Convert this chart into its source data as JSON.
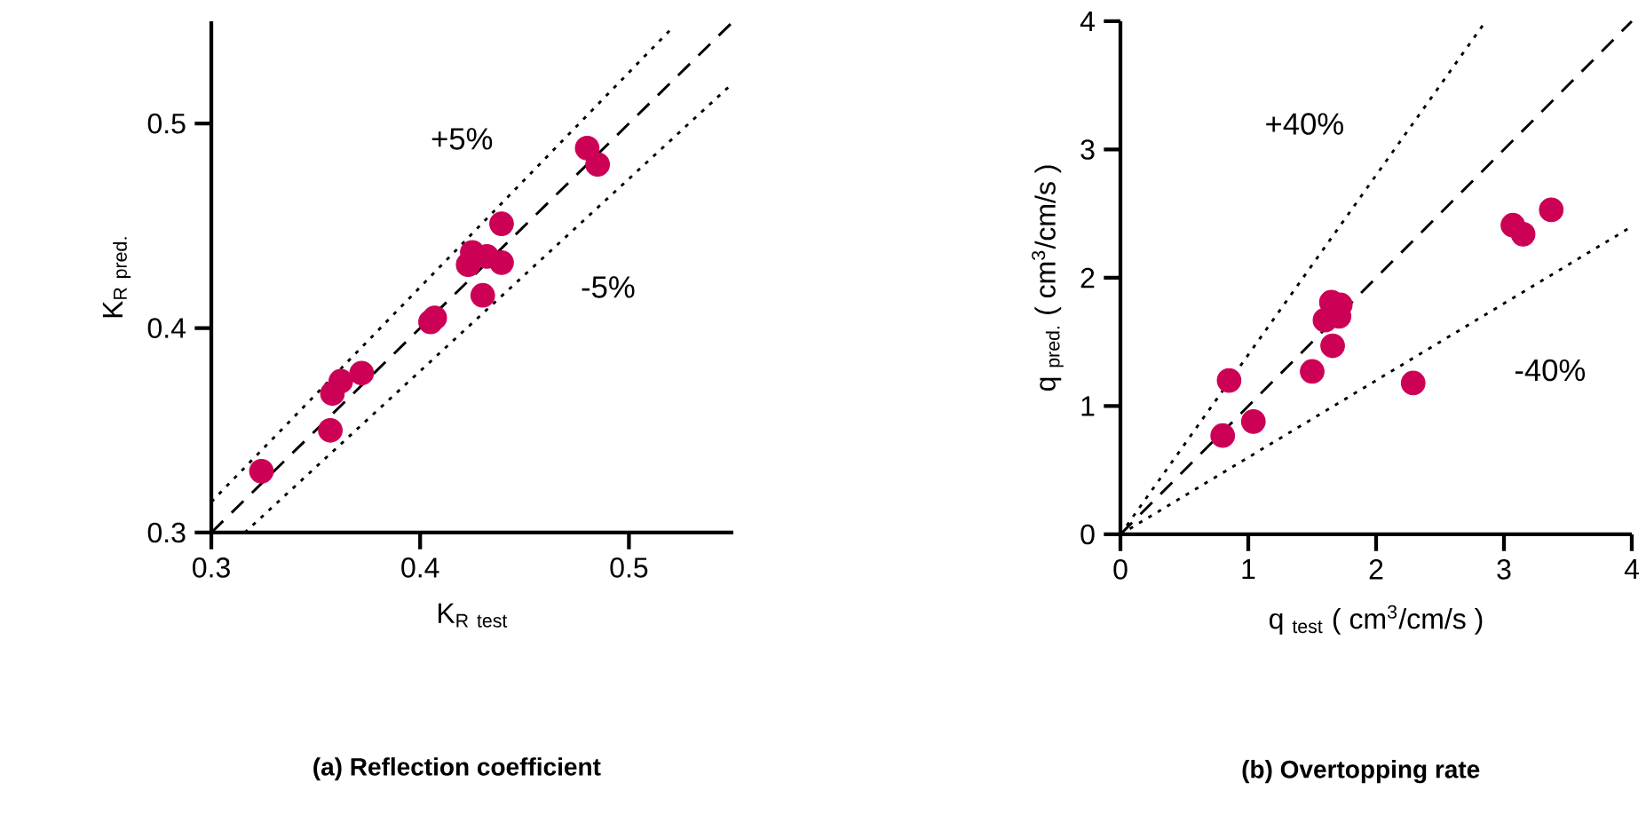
{
  "chart_data": [
    {
      "type": "scatter",
      "title": "(a) Reflection coefficient",
      "xlabel": "\\mathrm{K}_{\\mathrm{R\\ test}}",
      "ylabel": "\\mathrm{K}_{\\mathrm{R\\ pred.}}",
      "xlim": [
        0.3,
        0.55
      ],
      "ylim": [
        0.3,
        0.55
      ],
      "xticks": [
        0.3,
        0.4,
        0.5
      ],
      "yticks": [
        0.3,
        0.4,
        0.5
      ],
      "series": [
        {
          "marker": "circle",
          "color": "#cc0055",
          "x": [
            0.324,
            0.357,
            0.358,
            0.362,
            0.372,
            0.405,
            0.407,
            0.423,
            0.425,
            0.432,
            0.439,
            0.439,
            0.43,
            0.48,
            0.485
          ],
          "values": [
            0.33,
            0.35,
            0.368,
            0.374,
            0.378,
            0.403,
            0.405,
            0.431,
            0.437,
            0.435,
            0.432,
            0.451,
            0.416,
            0.488,
            0.48
          ]
        },
        {
          "type": "line",
          "line_style": "dashed",
          "color": "#000000",
          "x": [
            0.3,
            0.55
          ],
          "values": [
            0.3,
            0.55
          ]
        },
        {
          "type": "line",
          "line_style": "dotted",
          "color": "#000000",
          "x": [
            0.3,
            0.52
          ],
          "values": [
            0.315,
            0.546
          ]
        },
        {
          "type": "line",
          "line_style": "dotted",
          "color": "#000000",
          "x": [
            0.316,
            0.55
          ],
          "values": [
            0.3,
            0.52
          ]
        }
      ],
      "annotations": [
        "+5%",
        "-5%"
      ]
    },
    {
      "type": "scatter",
      "title": "(b) Overtopping rate",
      "xlabel": "q $_{test}$  ( cm$^{3}$/cm/s )",
      "ylabel": "q $_{pred.}$  ( cm$^{3}$/cm/s )",
      "xlim": [
        0,
        4
      ],
      "ylim": [
        0,
        4
      ],
      "xticks": [
        0,
        1,
        2,
        3,
        4
      ],
      "yticks": [
        0,
        1,
        2,
        3,
        4
      ],
      "series": [
        {
          "marker": "circle",
          "color": "#cc0055",
          "x": [
            0.85,
            0.8,
            1.04,
            1.5,
            1.66,
            1.6,
            1.65,
            1.72,
            1.71,
            2.29,
            3.07,
            3.15,
            3.37
          ],
          "values": [
            1.2,
            0.77,
            0.88,
            1.27,
            1.47,
            1.67,
            1.81,
            1.79,
            1.7,
            1.18,
            2.41,
            2.34,
            2.53
          ]
        },
        {
          "type": "line",
          "line_style": "dashed",
          "color": "#000000",
          "x": [
            0,
            4
          ],
          "values": [
            0,
            4
          ]
        },
        {
          "type": "line",
          "line_style": "dotted",
          "color": "#000000",
          "x": [
            0,
            2.857
          ],
          "values": [
            0,
            4
          ]
        },
        {
          "type": "line",
          "line_style": "dotted",
          "color": "#000000",
          "x": [
            0,
            4
          ],
          "values": [
            0,
            2.4
          ]
        }
      ],
      "annotations": [
        "+40%",
        "-40%"
      ]
    }
  ]
}
